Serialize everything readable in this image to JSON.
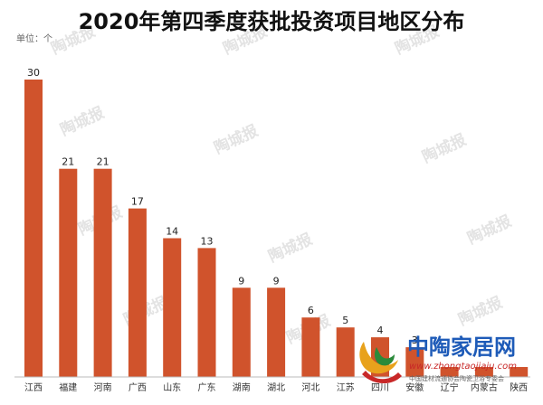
{
  "chart_data": {
    "type": "bar",
    "title": "2020年第四季度获批投资项目地区分布",
    "unit_label": "单位：个",
    "categories": [
      "江西",
      "福建",
      "河南",
      "广西",
      "山东",
      "广东",
      "湖南",
      "湖北",
      "河北",
      "江苏",
      "四川",
      "安徽",
      "辽宁",
      "内蒙古",
      "陕西"
    ],
    "values": [
      30,
      21,
      21,
      17,
      14,
      13,
      9,
      9,
      6,
      5,
      4,
      3,
      1,
      1,
      1
    ],
    "value_labels": [
      "30",
      "21",
      "21",
      "17",
      "14",
      "13",
      "9",
      "9",
      "6",
      "5",
      "4",
      "3",
      "",
      "",
      ""
    ],
    "ylim": [
      0,
      30
    ],
    "bar_color": "#d0532c",
    "grid": false,
    "legend": "none"
  },
  "watermark": {
    "text": "陶城报"
  },
  "logo": {
    "name": "中陶家居网",
    "url": "www.zhongtaojiaju.com",
    "subtitle": "中国建材流通协会陶瓷卫浴专委会",
    "colors": {
      "primary": "#1e5bb8",
      "accent": "#c82828"
    }
  }
}
